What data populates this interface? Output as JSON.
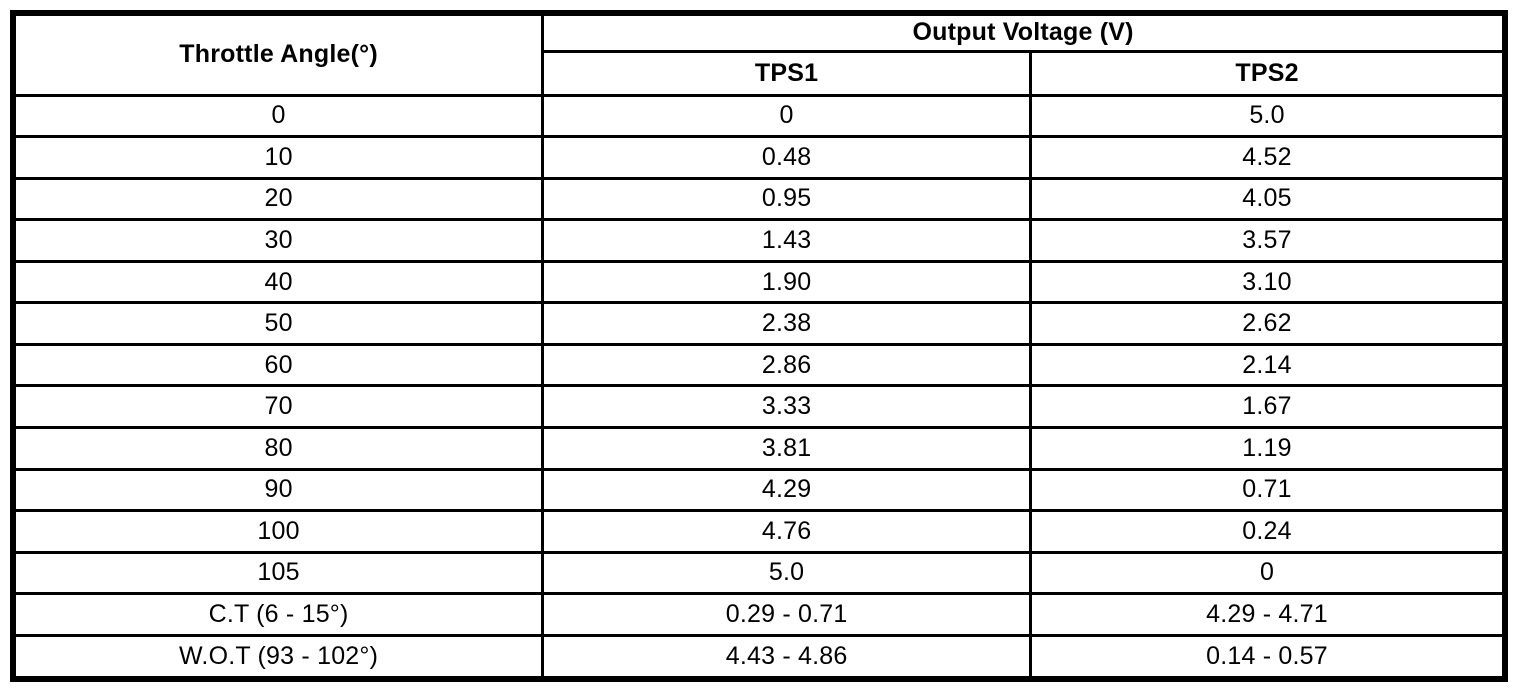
{
  "table": {
    "headers": {
      "throttle_angle": "Throttle Angle(°)",
      "output_voltage": "Output Voltage (V)",
      "tps1": "TPS1",
      "tps2": "TPS2"
    },
    "rows": [
      {
        "angle": "0",
        "tps1": "0",
        "tps2": "5.0"
      },
      {
        "angle": "10",
        "tps1": "0.48",
        "tps2": "4.52"
      },
      {
        "angle": "20",
        "tps1": "0.95",
        "tps2": "4.05"
      },
      {
        "angle": "30",
        "tps1": "1.43",
        "tps2": "3.57"
      },
      {
        "angle": "40",
        "tps1": "1.90",
        "tps2": "3.10"
      },
      {
        "angle": "50",
        "tps1": "2.38",
        "tps2": "2.62"
      },
      {
        "angle": "60",
        "tps1": "2.86",
        "tps2": "2.14"
      },
      {
        "angle": "70",
        "tps1": "3.33",
        "tps2": "1.67"
      },
      {
        "angle": "80",
        "tps1": "3.81",
        "tps2": "1.19"
      },
      {
        "angle": "90",
        "tps1": "4.29",
        "tps2": "0.71"
      },
      {
        "angle": "100",
        "tps1": "4.76",
        "tps2": "0.24"
      },
      {
        "angle": "105",
        "tps1": "5.0",
        "tps2": "0"
      },
      {
        "angle": "C.T (6 - 15°)",
        "tps1": "0.29 - 0.71",
        "tps2": "4.29 - 4.71"
      },
      {
        "angle": "W.O.T (93 - 102°)",
        "tps1": "4.43 - 4.86",
        "tps2": "0.14 - 0.57"
      }
    ],
    "colors": {
      "border": "#000000",
      "text": "#000000",
      "background": "#ffffff"
    }
  }
}
